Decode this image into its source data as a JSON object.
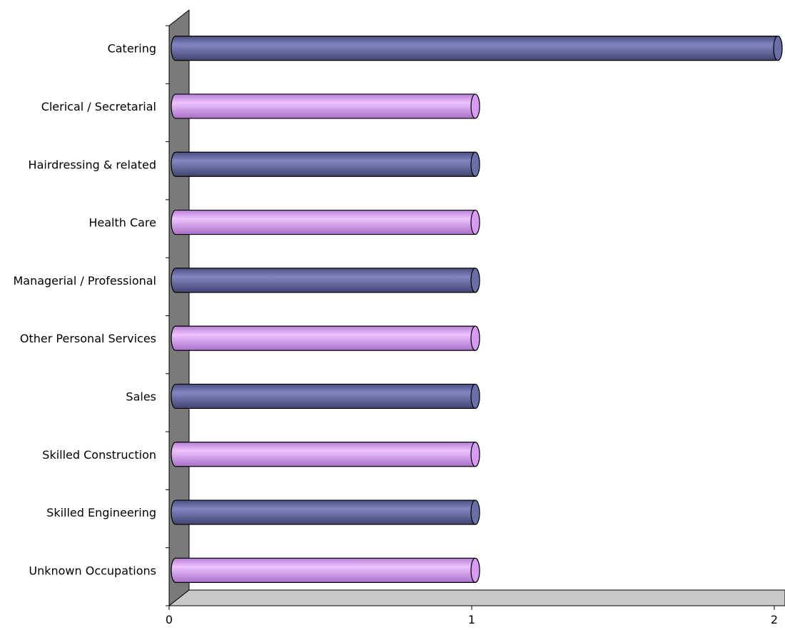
{
  "chart_data": {
    "type": "bar",
    "orientation": "horizontal",
    "style": "3d-cylinder",
    "categories": [
      "Catering",
      "Clerical / Secretarial",
      "Hairdressing & related",
      "Health Care",
      "Managerial / Professional",
      "Other Personal Services",
      "Sales",
      "Skilled Construction",
      "Skilled Engineering",
      "Unknown Occupations"
    ],
    "values": [
      2,
      1,
      1,
      1,
      1,
      1,
      1,
      1,
      1,
      1
    ],
    "xlim": [
      0,
      2
    ],
    "x_ticks": [
      "0",
      "1",
      "2"
    ],
    "grid": false,
    "legend": "none",
    "colors": {
      "bar_dark": "#6b6fa8",
      "bar_light": "#d79bf3",
      "wall": "#7a7a7a",
      "floor": "#c8c8c8"
    }
  }
}
